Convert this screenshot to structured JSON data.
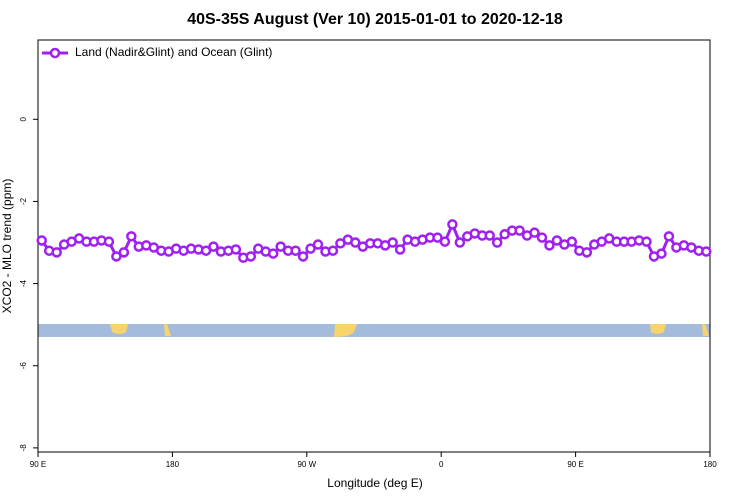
{
  "chart_data": {
    "type": "line",
    "title": "40S-35S August (Ver 10)   2015-01-01 to 2020-12-18",
    "xlabel": "Longitude (deg E)",
    "ylabel": "XCO2 - MLO trend (ppm)",
    "x": [
      92.5,
      97.5,
      102.5,
      107.5,
      112.5,
      117.5,
      122.5,
      127.5,
      132.5,
      137.5,
      142.5,
      147.5,
      152.5,
      157.5,
      162.5,
      167.5,
      172.5,
      177.5,
      182.5,
      187.5,
      192.5,
      197.5,
      202.5,
      207.5,
      212.5,
      217.5,
      222.5,
      227.5,
      232.5,
      237.5,
      242.5,
      247.5,
      252.5,
      257.5,
      262.5,
      267.5,
      272.5,
      277.5,
      282.5,
      287.5,
      292.5,
      297.5,
      302.5,
      307.5,
      312.5,
      317.5,
      322.5,
      327.5,
      332.5,
      337.5,
      342.5,
      347.5,
      352.5,
      357.5,
      362.5,
      367.5,
      372.5,
      377.5,
      382.5,
      387.5,
      392.5,
      397.5,
      402.5,
      407.5,
      412.5,
      417.5,
      422.5,
      427.5,
      432.5,
      437.5,
      442.5,
      447.5,
      452.5,
      457.5,
      462.5,
      467.5,
      472.5,
      477.5,
      482.5,
      487.5,
      492.5,
      497.5,
      502.5,
      507.5,
      512.5,
      517.5,
      522.5,
      527.5,
      532.5,
      537.5
    ],
    "series": [
      {
        "name": "Land (Nadir&Glint) and Ocean (Glint)",
        "color": "#a020f0",
        "values": [
          -2.95,
          -3.2,
          -3.24,
          -3.05,
          -2.98,
          -2.9,
          -2.98,
          -2.98,
          -2.95,
          -2.98,
          -3.34,
          -3.24,
          -2.85,
          -3.1,
          -3.07,
          -3.12,
          -3.2,
          -3.22,
          -3.15,
          -3.2,
          -3.15,
          -3.17,
          -3.2,
          -3.1,
          -3.22,
          -3.2,
          -3.17,
          -3.37,
          -3.34,
          -3.15,
          -3.22,
          -3.27,
          -3.1,
          -3.2,
          -3.2,
          -3.34,
          -3.15,
          -3.05,
          -3.22,
          -3.2,
          -3.02,
          -2.93,
          -3.0,
          -3.1,
          -3.02,
          -3.02,
          -3.07,
          -3.0,
          -3.17,
          -2.93,
          -2.98,
          -2.93,
          -2.88,
          -2.88,
          -2.98,
          -2.56,
          -3.0,
          -2.85,
          -2.78,
          -2.83,
          -2.83,
          -3.0,
          -2.8,
          -2.71,
          -2.71,
          -2.83,
          -2.76,
          -2.88,
          -3.07,
          -2.95,
          -3.05,
          -2.98,
          -3.2,
          -3.24,
          -3.05,
          -2.98,
          -2.9,
          -2.98,
          -2.98,
          -2.98,
          -2.95,
          -2.98,
          -3.34,
          -3.27,
          -2.85,
          -3.12,
          -3.07,
          -3.12,
          -3.2,
          -3.22
        ]
      }
    ],
    "xlim": [
      90,
      540
    ],
    "xticks": [
      {
        "value": 90,
        "label": "90 E"
      },
      180,
      {
        "value": 270,
        "label": "90 W"
      },
      {
        "value": 360,
        "label": "0"
      },
      {
        "value": 450,
        "label": "90 E"
      },
      {
        "value": 540,
        "label": "180"
      }
    ],
    "ylim": [
      -8.1,
      1.93
    ],
    "yticks": [
      -8,
      -6,
      -4,
      -2,
      0
    ],
    "legend": "upper left"
  }
}
